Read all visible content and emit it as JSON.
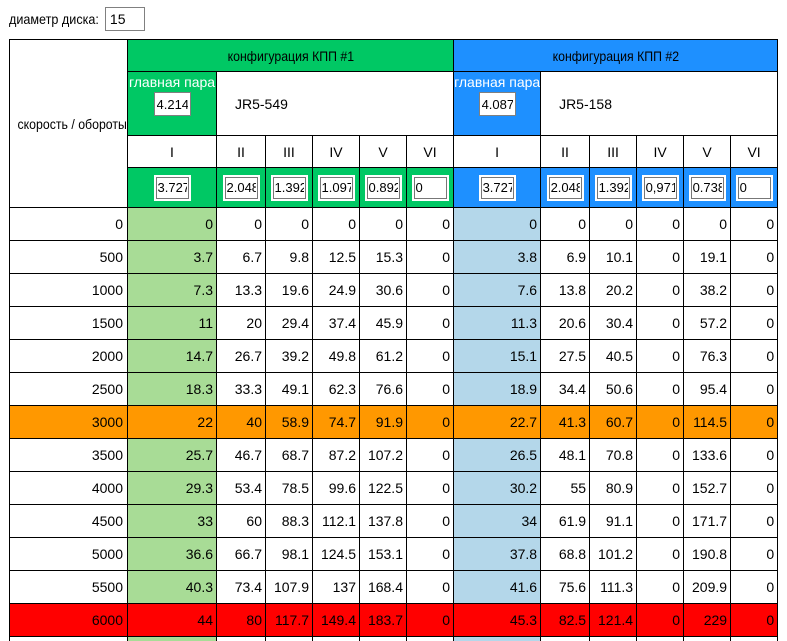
{
  "disk": {
    "label": "диаметр диска:",
    "value": "15"
  },
  "row_header": "скорость / обороты",
  "configs": [
    {
      "title": "конфигурация КПП #1",
      "main_pair_label": "главная пара",
      "main_pair_value": "4.214",
      "model": "JR5-549",
      "gears": [
        "I",
        "II",
        "III",
        "IV",
        "V",
        "VI"
      ],
      "ratios": [
        "3.727",
        "2.048",
        "1.392",
        "1.097",
        "0.892",
        "0"
      ],
      "accent": "#00c864",
      "cell_tint": "#a8dc96"
    },
    {
      "title": "конфигурация КПП #2",
      "main_pair_label": "главная пара",
      "main_pair_value": "4.087",
      "model": "JR5-158",
      "gears": [
        "I",
        "II",
        "III",
        "IV",
        "V",
        "VI"
      ],
      "ratios": [
        "3.727",
        "2.048",
        "1.392",
        "0,971",
        "0.738",
        "0"
      ],
      "accent": "#1e90ff",
      "cell_tint": "#b4d7ea"
    }
  ],
  "row_colors": {
    "warn": "#ff9800",
    "redline": "#ff0000"
  },
  "rows": [
    {
      "rpm": "0",
      "style": "normal",
      "c1": [
        "0",
        "0",
        "0",
        "0",
        "0",
        "0"
      ],
      "c2": [
        "0",
        "0",
        "0",
        "0",
        "0",
        "0"
      ]
    },
    {
      "rpm": "500",
      "style": "normal",
      "c1": [
        "3.7",
        "6.7",
        "9.8",
        "12.5",
        "15.3",
        "0"
      ],
      "c2": [
        "3.8",
        "6.9",
        "10.1",
        "0",
        "19.1",
        "0"
      ]
    },
    {
      "rpm": "1000",
      "style": "normal",
      "c1": [
        "7.3",
        "13.3",
        "19.6",
        "24.9",
        "30.6",
        "0"
      ],
      "c2": [
        "7.6",
        "13.8",
        "20.2",
        "0",
        "38.2",
        "0"
      ]
    },
    {
      "rpm": "1500",
      "style": "normal",
      "c1": [
        "11",
        "20",
        "29.4",
        "37.4",
        "45.9",
        "0"
      ],
      "c2": [
        "11.3",
        "20.6",
        "30.4",
        "0",
        "57.2",
        "0"
      ]
    },
    {
      "rpm": "2000",
      "style": "normal",
      "c1": [
        "14.7",
        "26.7",
        "39.2",
        "49.8",
        "61.2",
        "0"
      ],
      "c2": [
        "15.1",
        "27.5",
        "40.5",
        "0",
        "76.3",
        "0"
      ]
    },
    {
      "rpm": "2500",
      "style": "normal",
      "c1": [
        "18.3",
        "33.3",
        "49.1",
        "62.3",
        "76.6",
        "0"
      ],
      "c2": [
        "18.9",
        "34.4",
        "50.6",
        "0",
        "95.4",
        "0"
      ]
    },
    {
      "rpm": "3000",
      "style": "warn",
      "c1": [
        "22",
        "40",
        "58.9",
        "74.7",
        "91.9",
        "0"
      ],
      "c2": [
        "22.7",
        "41.3",
        "60.7",
        "0",
        "114.5",
        "0"
      ]
    },
    {
      "rpm": "3500",
      "style": "normal",
      "c1": [
        "25.7",
        "46.7",
        "68.7",
        "87.2",
        "107.2",
        "0"
      ],
      "c2": [
        "26.5",
        "48.1",
        "70.8",
        "0",
        "133.6",
        "0"
      ]
    },
    {
      "rpm": "4000",
      "style": "normal",
      "c1": [
        "29.3",
        "53.4",
        "78.5",
        "99.6",
        "122.5",
        "0"
      ],
      "c2": [
        "30.2",
        "55",
        "80.9",
        "0",
        "152.7",
        "0"
      ]
    },
    {
      "rpm": "4500",
      "style": "normal",
      "c1": [
        "33",
        "60",
        "88.3",
        "112.1",
        "137.8",
        "0"
      ],
      "c2": [
        "34",
        "61.9",
        "91.1",
        "0",
        "171.7",
        "0"
      ]
    },
    {
      "rpm": "5000",
      "style": "normal",
      "c1": [
        "36.6",
        "66.7",
        "98.1",
        "124.5",
        "153.1",
        "0"
      ],
      "c2": [
        "37.8",
        "68.8",
        "101.2",
        "0",
        "190.8",
        "0"
      ]
    },
    {
      "rpm": "5500",
      "style": "normal",
      "c1": [
        "40.3",
        "73.4",
        "107.9",
        "137",
        "168.4",
        "0"
      ],
      "c2": [
        "41.6",
        "75.6",
        "111.3",
        "0",
        "209.9",
        "0"
      ]
    },
    {
      "rpm": "6000",
      "style": "redline",
      "c1": [
        "44",
        "80",
        "117.7",
        "149.4",
        "183.7",
        "0"
      ],
      "c2": [
        "45.3",
        "82.5",
        "121.4",
        "0",
        "229",
        "0"
      ]
    }
  ]
}
